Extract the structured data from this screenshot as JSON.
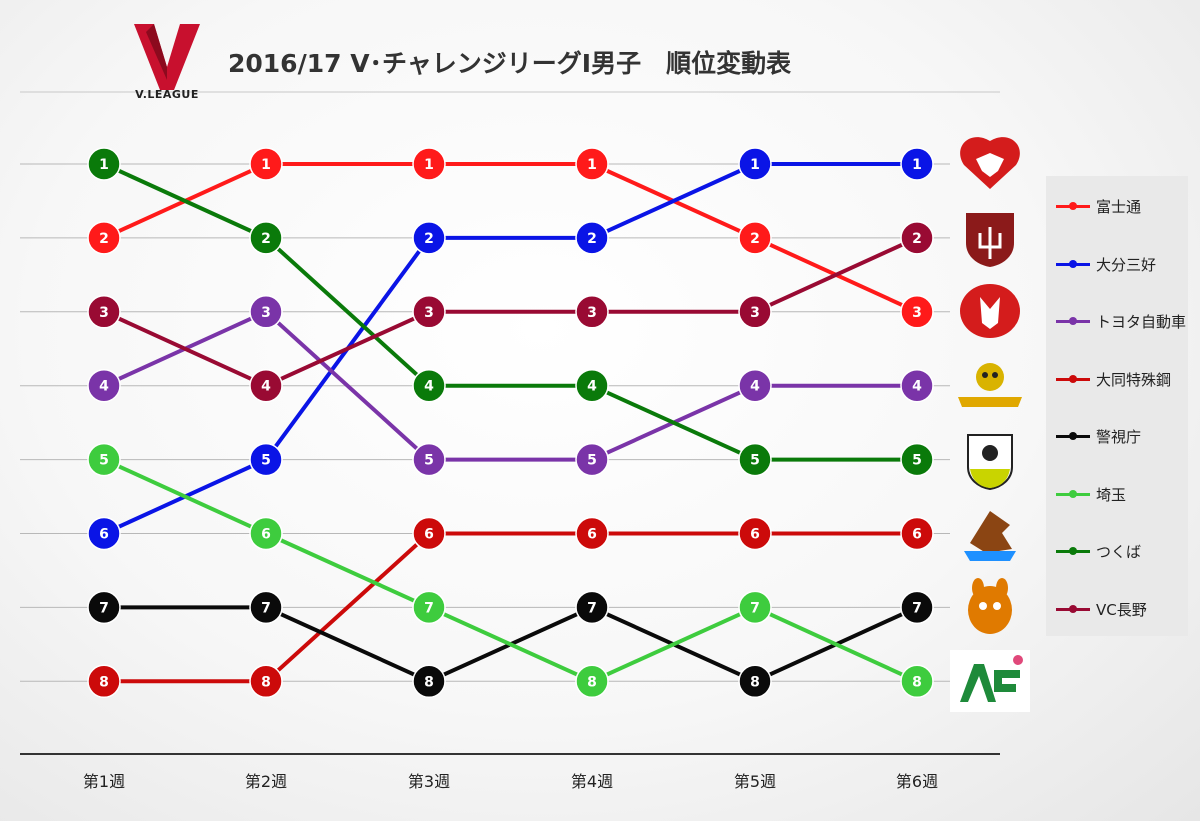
{
  "header": {
    "title": "2016/17 V･チャレンジリーグⅠ男子　順位変動表",
    "logo_text": "V.LEAGUE"
  },
  "chart_data": {
    "type": "line",
    "categories": [
      "第1週",
      "第2週",
      "第3週",
      "第4週",
      "第5週",
      "第6週"
    ],
    "y_axis": "rank",
    "ylim": [
      1,
      8
    ],
    "y_reversed": true,
    "grid": "horizontal",
    "legend_position": "right",
    "series": [
      {
        "name": "富士通",
        "color": "#ff1a1a",
        "values": [
          2,
          1,
          1,
          1,
          2,
          3
        ]
      },
      {
        "name": "大分三好",
        "color": "#0a14e6",
        "values": [
          6,
          5,
          2,
          2,
          1,
          1
        ]
      },
      {
        "name": "トヨタ自動車",
        "color": "#7a34a8",
        "values": [
          4,
          3,
          5,
          5,
          4,
          4
        ]
      },
      {
        "name": "大同特殊鋼",
        "color": "#cc0a0a",
        "values": [
          8,
          8,
          6,
          6,
          6,
          6
        ]
      },
      {
        "name": "警視庁",
        "color": "#0a0a0a",
        "values": [
          7,
          7,
          8,
          7,
          8,
          7
        ]
      },
      {
        "name": "埼玉",
        "color": "#3ecc3e",
        "values": [
          5,
          6,
          7,
          8,
          7,
          8
        ]
      },
      {
        "name": "つくば",
        "color": "#0a7a0a",
        "values": [
          1,
          2,
          4,
          4,
          5,
          5
        ]
      },
      {
        "name": "VC長野",
        "color": "#990a33",
        "values": [
          3,
          4,
          3,
          3,
          3,
          2
        ]
      }
    ]
  },
  "team_badges": [
    {
      "rank": 1,
      "name": "shield-heart-badge",
      "color": "#d41c1c"
    },
    {
      "rank": 2,
      "name": "trident-shield-badge",
      "color": "#8b1a1a"
    },
    {
      "rank": 3,
      "name": "fox-crest-badge",
      "color": "#d41c1c"
    },
    {
      "rank": 4,
      "name": "hawk-badge",
      "color": "#d9b300"
    },
    {
      "rank": 5,
      "name": "gaia-shield-badge",
      "color": "#c9d400"
    },
    {
      "rank": 6,
      "name": "eagle-badge",
      "color": "#8b4513"
    },
    {
      "rank": 7,
      "name": "kangaroo-badge",
      "color": "#e07a00"
    },
    {
      "rank": 8,
      "name": "azalea-badge",
      "color": "#1e8a3a"
    }
  ]
}
